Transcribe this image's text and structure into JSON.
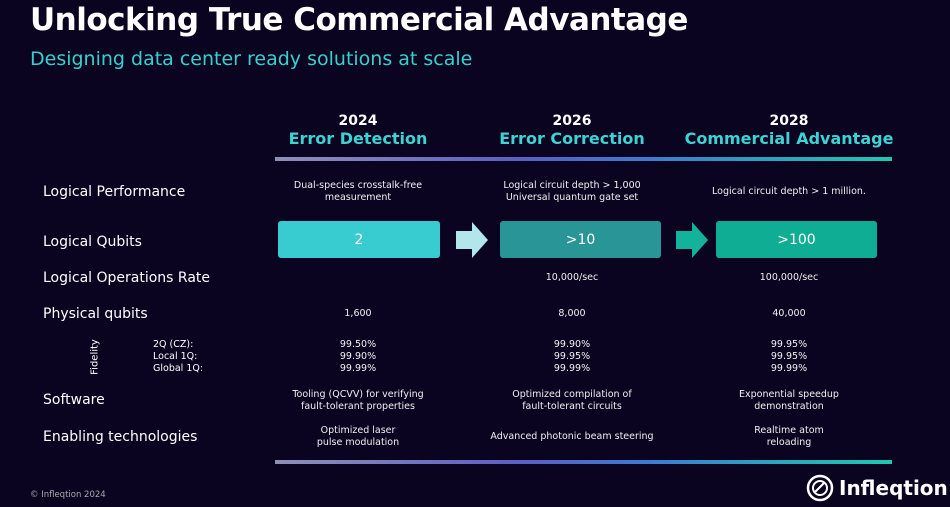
{
  "title": "Unlocking True Commercial Advantage",
  "subtitle": "Designing data center ready solutions at scale",
  "columns": [
    {
      "year": "2024",
      "name": "Error Detection",
      "performance": [
        "Dual-species crosstalk-free",
        "measurement"
      ],
      "qubits": "2",
      "ops_rate": "",
      "physical": "1,600",
      "fidelity": [
        "99.50%",
        "99.90%",
        "99.99%"
      ],
      "software": [
        "Tooling (QCVV) for verifying",
        "fault-tolerant properties"
      ],
      "enabling": [
        "Optimized laser",
        "pulse modulation"
      ],
      "color": "#38cbcf"
    },
    {
      "year": "2026",
      "name": "Error Correction",
      "performance": [
        "Logical circuit depth > 1,000",
        "Universal quantum gate set"
      ],
      "qubits": ">10",
      "ops_rate": "10,000/sec",
      "physical": "8,000",
      "fidelity": [
        "99.90%",
        "99.95%",
        "99.99%"
      ],
      "software": [
        "Optimized compilation of",
        "fault-tolerant circuits"
      ],
      "enabling": [
        "Advanced photonic beam steering",
        ""
      ],
      "color": "#2a9597"
    },
    {
      "year": "2028",
      "name": "Commercial Advantage",
      "performance": [
        "Logical circuit depth > 1 million.",
        ""
      ],
      "qubits": ">100",
      "ops_rate": "100,000/sec",
      "physical": "40,000",
      "fidelity": [
        "99.95%",
        "99.95%",
        "99.99%"
      ],
      "software": [
        "Exponential speedup",
        "demonstration"
      ],
      "enabling": [
        "Realtime atom",
        "reloading"
      ],
      "color": "#0fae94"
    }
  ],
  "rows": {
    "performance": "Logical Performance",
    "qubits": "Logical Qubits",
    "ops_rate": "Logical Operations Rate",
    "physical": "Physical qubits",
    "fidelity": "Fidelity",
    "software": "Software",
    "enabling": "Enabling technologies"
  },
  "fidelity_labels": [
    "2Q (CZ):",
    "Local 1Q:",
    "Global 1Q:"
  ],
  "footer": "© Infleqtion 2024",
  "logo": "Infleqtion"
}
